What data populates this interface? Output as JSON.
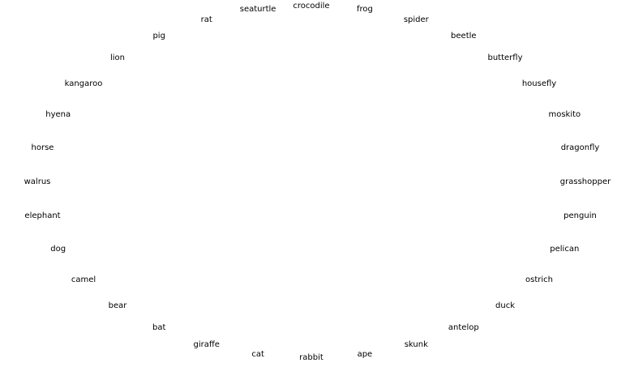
{
  "labels": [
    "crocodile",
    "frog",
    "spider",
    "beetle",
    "butterfly",
    "housefly",
    "moskito",
    "dragonfly",
    "grasshopper",
    "penguin",
    "pelican",
    "ostrich",
    "duck",
    "antelop",
    "skunk",
    "ape",
    "rabbit",
    "cat",
    "giraffe",
    "bat",
    "bear",
    "camel",
    "dog",
    "elephant",
    "walrus",
    "horse",
    "hyena",
    "kangaroo",
    "lion",
    "pig",
    "rat",
    "seaturtle"
  ]
}
